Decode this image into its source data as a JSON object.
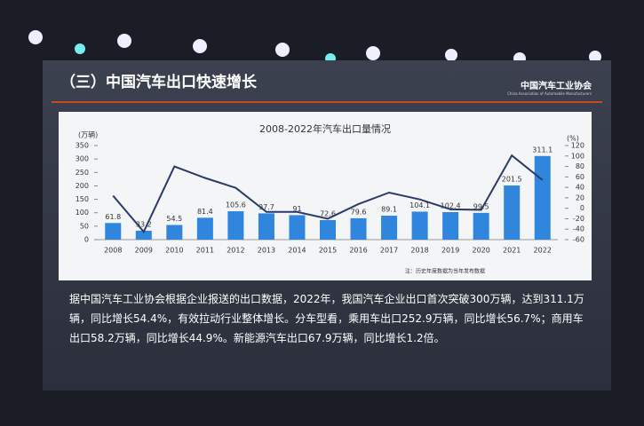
{
  "slide": {
    "title": "（三）中国汽车出口快速增长",
    "logo": "中国汽车工业协会",
    "logo_en": "China Association of Automobile Manufacturers",
    "text": "据中国汽车工业协会根据企业报送的出口数据，2022年，我国汽车企业出口首次突破300万辆，达到311.1万辆，同比增长54.4%，有效拉动行业整体增长。分车型看，乘用车出口252.9万辆，同比增长56.7%；商用车出口58.2万辆，同比增长44.9%。新能源汽车出口67.9万辆，同比增长1.2倍。"
  },
  "chart_data": {
    "type": "bar",
    "title": "2008-2022年汽车出口量情况",
    "y_label": "(万辆)",
    "y2_label": "(%)",
    "note": "注：历史年度数据为当年发布数据",
    "categories": [
      "2008",
      "2009",
      "2010",
      "2011",
      "2012",
      "2013",
      "2014",
      "2015",
      "2016",
      "2017",
      "2018",
      "2019",
      "2020",
      "2021",
      "2022"
    ],
    "series": [
      {
        "type": "bar",
        "color": "#2f86dc",
        "values": [
          61.8,
          33.2,
          54.5,
          81.4,
          105.6,
          97.7,
          91,
          72.6,
          79.6,
          89.1,
          104.1,
          102.4,
          99.5,
          201.5,
          311.1
        ]
      },
      {
        "type": "line",
        "axis": "y2",
        "color": "#2c3a68",
        "values": [
          24,
          -45,
          80,
          58,
          39,
          -7,
          -7,
          -20,
          8,
          30,
          17,
          -2,
          -3,
          101,
          54
        ]
      }
    ],
    "ylim": [
      0,
      350
    ],
    "yticks": [
      0,
      50,
      100,
      150,
      200,
      250,
      300,
      350
    ],
    "y2lim": [
      -60,
      120
    ],
    "y2ticks": [
      -60,
      -40,
      -20,
      0,
      20,
      40,
      60,
      80,
      100,
      120
    ]
  }
}
